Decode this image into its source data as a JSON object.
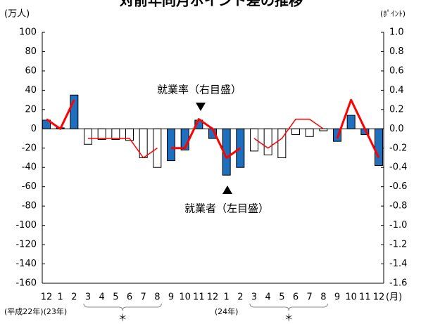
{
  "chart_data": {
    "type": "bar",
    "title": "対前年同月ポイント差の推移",
    "y_axis_label": "(万人)",
    "y2_axis_label": "(ﾎﾟｲﾝﾄ)",
    "x_axis_label": "(月)",
    "categories": [
      "12",
      "1",
      "2",
      "3",
      "4",
      "5",
      "6",
      "7",
      "8",
      "9",
      "10",
      "11",
      "12",
      "1",
      "2",
      "3",
      "4",
      "5",
      "6",
      "7",
      "8",
      "9",
      "10",
      "11",
      "12"
    ],
    "series": [
      {
        "type": "bar",
        "color": "#1f6fbf",
        "values": [
          9,
          1,
          35,
          null,
          null,
          null,
          null,
          null,
          null,
          -33,
          -22,
          9,
          -10,
          -48,
          -40,
          null,
          null,
          null,
          null,
          null,
          null,
          -13,
          14,
          -6,
          -38
        ]
      },
      {
        "type": "bar",
        "color": "#ffffff",
        "values": [
          null,
          null,
          null,
          -16,
          -11,
          -11,
          -12,
          -30,
          -40,
          null,
          null,
          null,
          null,
          null,
          null,
          -23,
          -27,
          -30,
          -6,
          -8,
          -2,
          null,
          null,
          null,
          null
        ]
      },
      {
        "type": "line",
        "axis": "y2",
        "color": "#ff0000",
        "width": 3,
        "values": [
          0.1,
          0.0,
          0.3,
          null,
          null,
          null,
          null,
          null,
          null,
          -0.2,
          -0.2,
          0.1,
          0.0,
          -0.3,
          -0.2,
          null,
          null,
          null,
          null,
          null,
          null,
          -0.1,
          0.3,
          0.0,
          -0.3
        ]
      },
      {
        "type": "line",
        "axis": "y2",
        "color": "#ff0000",
        "width": 1.5,
        "values": [
          null,
          null,
          null,
          -0.1,
          -0.1,
          -0.1,
          -0.1,
          -0.3,
          -0.2,
          null,
          null,
          null,
          null,
          null,
          null,
          -0.1,
          -0.2,
          -0.1,
          0.1,
          0.1,
          0.0,
          null,
          null,
          null,
          null
        ]
      }
    ],
    "ylim": [
      -160,
      100
    ],
    "yticks": [
      -160,
      -140,
      -120,
      -100,
      -80,
      -60,
      -40,
      -20,
      0,
      20,
      40,
      60,
      80,
      100
    ],
    "y2lim": [
      -1.6,
      1.0
    ],
    "y2ticks": [
      {
        "value": -1.6,
        "label": "-1.6"
      },
      {
        "value": -1.4,
        "label": "-1.4"
      },
      {
        "value": -1.2,
        "label": "-1.2"
      },
      {
        "value": -1.0,
        "label": "-1.0"
      },
      {
        "value": -0.8,
        "label": "-0.8"
      },
      {
        "value": -0.6,
        "label": "-0.6"
      },
      {
        "value": -0.4,
        "label": "-0.4"
      },
      {
        "value": -0.2,
        "label": "-0.2"
      },
      {
        "value": 0,
        "label": "0.0"
      },
      {
        "value": 0.2,
        "label": "0.2"
      },
      {
        "value": 0.4,
        "label": "0.4"
      },
      {
        "value": 0.6,
        "label": "0.6"
      },
      {
        "value": 0.8,
        "label": "0.8"
      },
      {
        "value": 1.0,
        "label": "1.0"
      }
    ],
    "annotations": [
      "就業率（右目盛）",
      "就業者（左目盛）"
    ],
    "year_labels": [
      "(平成22年)(23年)",
      "(24年)"
    ],
    "estimate_marks": [
      "＊",
      "＊"
    ]
  }
}
